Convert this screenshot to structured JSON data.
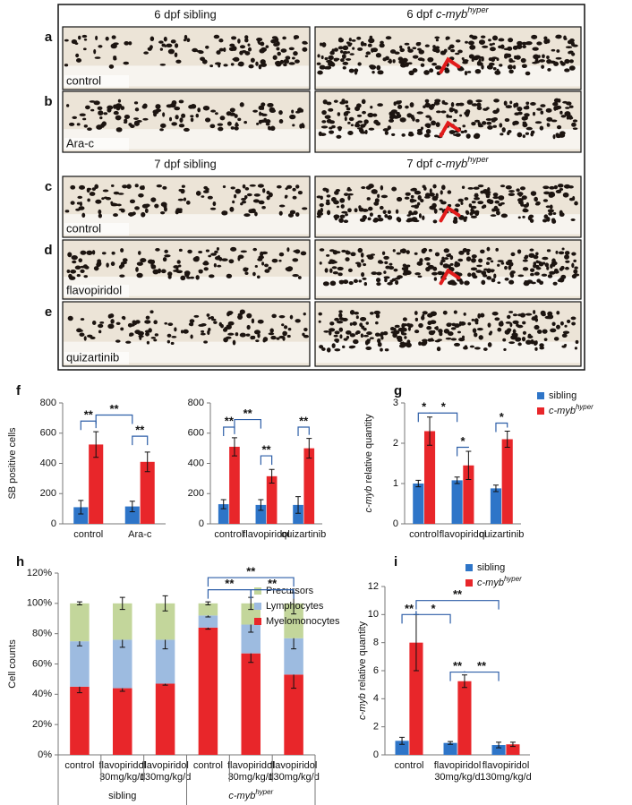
{
  "figure": {
    "headers": [
      {
        "left": "6 dpf sibling",
        "right": {
          "pre": "6 dpf ",
          "base": "c-myb",
          "sup": "hyper"
        }
      },
      {
        "left": "7 dpf sibling",
        "right": {
          "pre": "7 dpf ",
          "base": "c-myb",
          "sup": "hyper"
        }
      }
    ],
    "rows": [
      {
        "letter": "a",
        "label": "control"
      },
      {
        "letter": "b",
        "label": "Ara-c"
      },
      {
        "letter": "c",
        "label": "control"
      },
      {
        "letter": "d",
        "label": "flavopiridol"
      },
      {
        "letter": "e",
        "label": "quizartinib"
      }
    ]
  },
  "chart_data": [
    {
      "type": "bar",
      "label": "f",
      "ylabel": "SB positive cells",
      "categories": [
        "control",
        "Ara-c"
      ],
      "series": [
        {
          "color": "#2e75c8",
          "values": [
            110,
            115
          ],
          "errors": [
            45,
            35
          ]
        },
        {
          "color": "#e8262a",
          "values": [
            525,
            410
          ],
          "errors": [
            85,
            65
          ]
        }
      ],
      "ylim": [
        0,
        800
      ],
      "yticks": [
        0,
        200,
        400,
        600,
        800
      ],
      "annotations": [
        "**",
        "**",
        "**"
      ]
    },
    {
      "type": "bar",
      "categories": [
        "control",
        "flavopiridol",
        "quizartinib"
      ],
      "series": [
        {
          "color": "#2e75c8",
          "values": [
            130,
            125,
            125
          ],
          "errors": [
            30,
            35,
            55
          ]
        },
        {
          "color": "#e8262a",
          "values": [
            510,
            315,
            500
          ],
          "errors": [
            60,
            45,
            65
          ]
        }
      ],
      "ylim": [
        0,
        800
      ],
      "yticks": [
        0,
        200,
        400,
        600,
        800
      ],
      "annotations": [
        "**",
        "**",
        "**",
        "**"
      ]
    },
    {
      "type": "bar",
      "label": "g",
      "ylabel": {
        "base": "c-myb",
        "rest": " relative quantity"
      },
      "categories": [
        "control",
        "flavopiridol",
        "quizartinib"
      ],
      "series": [
        {
          "name": "sibling",
          "color": "#2e75c8",
          "values": [
            1.0,
            1.08,
            0.88
          ],
          "errors": [
            0.08,
            0.08,
            0.08
          ]
        },
        {
          "name": {
            "base": "c-myb",
            "sup": "hyper"
          },
          "color": "#e8262a",
          "values": [
            2.3,
            1.45,
            2.1
          ],
          "errors": [
            0.35,
            0.35,
            0.2
          ]
        }
      ],
      "ylim": [
        0,
        3
      ],
      "yticks": [
        0,
        1,
        2,
        3
      ],
      "annotations": [
        "*",
        "*",
        "*",
        "*"
      ]
    },
    {
      "type": "stacked_bar",
      "label": "h",
      "ylabel": "Cell counts",
      "categories": [
        [
          "control"
        ],
        [
          "flavopiridol",
          "30mg/kg/d"
        ],
        [
          "flavopiridol",
          "130mg/kg/d"
        ],
        [
          "control"
        ],
        [
          "flavopiridol",
          "30mg/kg/d"
        ],
        [
          "flavopiridol",
          "130mg/kg/d"
        ]
      ],
      "groups": [
        "sibling",
        {
          "base": "c-myb",
          "sup": "hyper"
        }
      ],
      "series": [
        {
          "name": "Myelomonocytes",
          "color": "#e8262a",
          "values": [
            45,
            44,
            47,
            84,
            67,
            53
          ],
          "errors": [
            4,
            2,
            1,
            1,
            6,
            9
          ]
        },
        {
          "name": "Lymphocytes",
          "color": "#9dbbe0",
          "values": [
            30,
            32,
            29,
            8,
            19,
            24
          ],
          "errors": [
            3,
            5,
            6,
            1,
            5,
            7
          ]
        },
        {
          "name": "Precursors",
          "color": "#c3d69b",
          "values": [
            25,
            24,
            24,
            8,
            14,
            23
          ],
          "errors": [
            1,
            4,
            5,
            1,
            4,
            7
          ]
        }
      ],
      "ylim": [
        0,
        120
      ],
      "yticks": [
        {
          "value": 0,
          "label": "0%"
        },
        {
          "value": 20,
          "label": "20%"
        },
        {
          "value": 40,
          "label": "40%"
        },
        {
          "value": 60,
          "label": "60%"
        },
        {
          "value": 80,
          "label": "80%"
        },
        {
          "value": 100,
          "label": "100%"
        },
        {
          "value": 120,
          "label": "120%"
        }
      ],
      "annotations": [
        "**",
        "**",
        "**"
      ]
    },
    {
      "type": "bar",
      "label": "i",
      "ylabel": {
        "base": "c-myb",
        "rest": " relative quantity"
      },
      "categories": [
        [
          "control"
        ],
        [
          "flavopiridol",
          "30mg/kg/d"
        ],
        [
          "flavopiridol",
          "130mg/kg/d"
        ]
      ],
      "series": [
        {
          "name": "sibling",
          "color": "#2e75c8",
          "values": [
            1.0,
            0.85,
            0.7
          ],
          "errors": [
            0.25,
            0.1,
            0.2
          ]
        },
        {
          "name": {
            "base": "c-myb",
            "sup": "hyper"
          },
          "color": "#e8262a",
          "values": [
            8.0,
            5.25,
            0.75
          ],
          "errors": [
            2.0,
            0.45,
            0.15
          ]
        }
      ],
      "ylim": [
        0,
        12
      ],
      "yticks": [
        0,
        2,
        4,
        6,
        8,
        10,
        12
      ],
      "annotations": [
        "**",
        "*",
        "**",
        "**",
        "**"
      ]
    }
  ]
}
